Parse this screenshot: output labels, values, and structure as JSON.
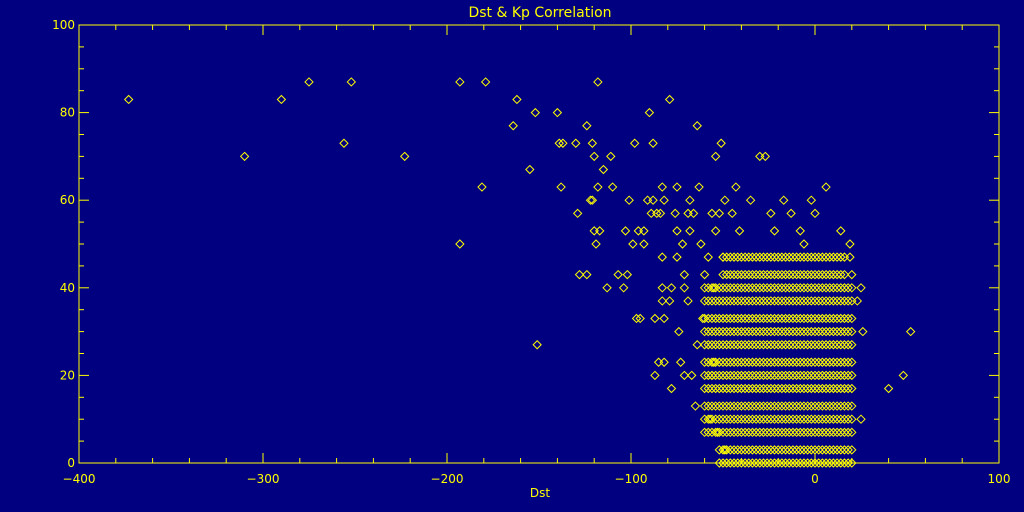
{
  "colors": {
    "background": "#000080",
    "foreground": "#ffff00"
  },
  "chart_data": {
    "type": "scatter",
    "title": "Dst & Kp Correlation",
    "xlabel": "Dst",
    "ylabel": "",
    "xlim": [
      -400,
      100
    ],
    "ylim": [
      0,
      100
    ],
    "x_ticks": [
      -400,
      -300,
      -200,
      -100,
      0,
      100
    ],
    "y_ticks": [
      0,
      20,
      40,
      60,
      80,
      100
    ],
    "marker": "diamond-open",
    "grid": false,
    "series": [
      {
        "name": "",
        "outliers": [
          [
            -373,
            83
          ],
          [
            -310,
            70
          ],
          [
            -290,
            83
          ],
          [
            -275,
            87
          ],
          [
            -256,
            73
          ],
          [
            -252,
            87
          ],
          [
            -223,
            70
          ],
          [
            -193,
            87
          ],
          [
            -193,
            50
          ],
          [
            -181,
            63
          ],
          [
            -179,
            87
          ],
          [
            -164,
            77
          ],
          [
            -162,
            83
          ],
          [
            -155,
            67
          ],
          [
            -152,
            80
          ],
          [
            -151,
            27
          ],
          [
            -140,
            80
          ],
          [
            -139,
            73
          ],
          [
            -138,
            63
          ],
          [
            -137,
            73
          ],
          [
            -130,
            73
          ],
          [
            -129,
            57
          ],
          [
            -128,
            43
          ],
          [
            -124,
            43
          ],
          [
            -124,
            77
          ],
          [
            -122,
            60
          ],
          [
            -121,
            73
          ],
          [
            -121,
            60
          ],
          [
            -120,
            70
          ],
          [
            -120,
            53
          ],
          [
            -119,
            50
          ],
          [
            -118,
            63
          ],
          [
            -118,
            87
          ],
          [
            -117,
            53
          ],
          [
            -115,
            67
          ],
          [
            -113,
            40
          ],
          [
            -111,
            70
          ],
          [
            -110,
            63
          ],
          [
            -107,
            43
          ],
          [
            -104,
            40
          ],
          [
            -103,
            53
          ],
          [
            -102,
            43
          ],
          [
            -101,
            60
          ],
          [
            -99,
            50
          ],
          [
            -98,
            73
          ],
          [
            -97,
            33
          ],
          [
            -96,
            53
          ],
          [
            -95,
            33
          ],
          [
            -93,
            53
          ],
          [
            -93,
            50
          ],
          [
            -91,
            60
          ],
          [
            -90,
            80
          ],
          [
            -89,
            57
          ],
          [
            -88,
            60
          ],
          [
            -88,
            73
          ],
          [
            -87,
            33
          ],
          [
            -87,
            20
          ],
          [
            -86,
            57
          ],
          [
            -85,
            23
          ],
          [
            -84,
            57
          ],
          [
            -83,
            47
          ],
          [
            -83,
            40
          ],
          [
            -83,
            37
          ],
          [
            -83,
            63
          ],
          [
            -82,
            60
          ],
          [
            -82,
            33
          ],
          [
            -82,
            23
          ],
          [
            -79,
            83
          ],
          [
            -79,
            37
          ],
          [
            -78,
            17
          ],
          [
            -78,
            40
          ],
          [
            -76,
            57
          ],
          [
            -75,
            53
          ],
          [
            -75,
            47
          ],
          [
            -75,
            63
          ],
          [
            -74,
            30
          ],
          [
            -73,
            23
          ],
          [
            -72,
            50
          ],
          [
            -71,
            40
          ],
          [
            -71,
            43
          ],
          [
            -71,
            20
          ],
          [
            -69,
            57
          ],
          [
            -69,
            37
          ],
          [
            -68,
            60
          ],
          [
            -68,
            53
          ],
          [
            -67,
            20
          ],
          [
            -66,
            57
          ],
          [
            -65,
            13
          ],
          [
            -64,
            77
          ],
          [
            -64,
            27
          ],
          [
            -63,
            63
          ],
          [
            -62,
            50
          ],
          [
            -61,
            33
          ],
          [
            -60,
            43
          ],
          [
            -58,
            47
          ],
          [
            -57,
            10
          ],
          [
            -56,
            20
          ],
          [
            -56,
            57
          ],
          [
            -55,
            40
          ],
          [
            -55,
            23
          ],
          [
            -54,
            70
          ],
          [
            -54,
            53
          ],
          [
            -53,
            7
          ],
          [
            -52,
            57
          ],
          [
            -51,
            73
          ],
          [
            -50,
            47
          ],
          [
            -49,
            3
          ],
          [
            -49,
            60
          ],
          [
            -45,
            57
          ],
          [
            -43,
            63
          ],
          [
            -41,
            53
          ],
          [
            -35,
            60
          ],
          [
            -30,
            70
          ],
          [
            -27,
            70
          ],
          [
            -24,
            57
          ],
          [
            -22,
            53
          ],
          [
            -17,
            60
          ],
          [
            -13,
            57
          ],
          [
            -8,
            53
          ],
          [
            -6,
            50
          ],
          [
            -2,
            60
          ],
          [
            0,
            57
          ],
          [
            6,
            63
          ],
          [
            14,
            53
          ],
          [
            19,
            50
          ],
          [
            19,
            47
          ],
          [
            20,
            43
          ],
          [
            23,
            37
          ],
          [
            25,
            40
          ],
          [
            25,
            10
          ],
          [
            26,
            30
          ],
          [
            40,
            17
          ],
          [
            48,
            20
          ],
          [
            52,
            30
          ]
        ],
        "dense_band": {
          "x_range": [
            -60,
            20
          ],
          "core_x_range": [
            -45,
            0
          ],
          "y_levels": [
            0,
            3,
            7,
            10,
            13,
            17,
            20,
            23,
            27,
            30,
            33,
            37,
            40,
            43,
            47
          ]
        }
      }
    ]
  }
}
